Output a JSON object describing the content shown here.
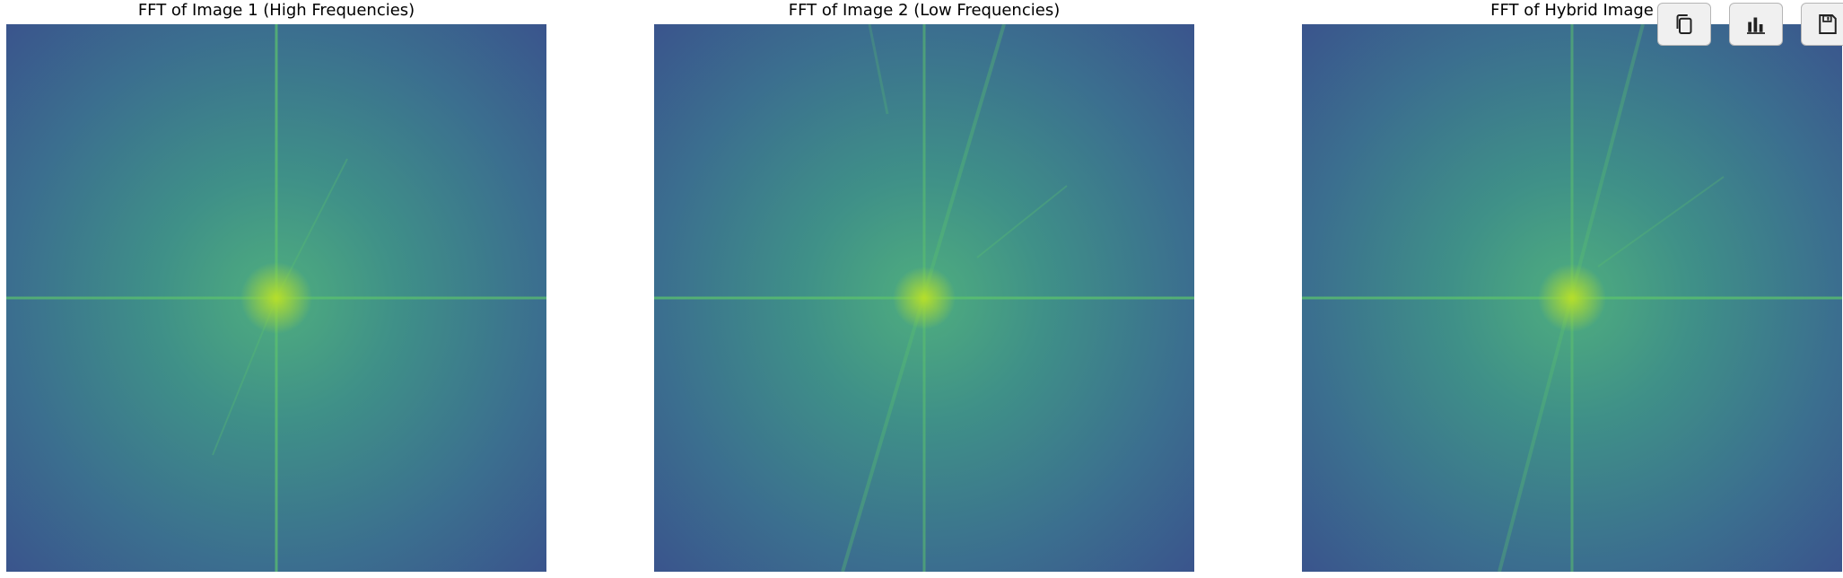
{
  "panels": [
    {
      "title": "FFT of Image 1 (High Frequencies)"
    },
    {
      "title": "FFT of Image 2 (Low Frequencies)"
    },
    {
      "title": "FFT of Hybrid Image"
    }
  ],
  "toolbar": {
    "buttons": [
      {
        "icon": "copy-icon"
      },
      {
        "icon": "bar-chart-icon"
      },
      {
        "icon": "save-icon"
      }
    ]
  },
  "colors": {
    "spectrum_dark": "#3b5b8f",
    "spectrum_mid": "#3f8a8c",
    "spectrum_bright": "#7ad151"
  }
}
